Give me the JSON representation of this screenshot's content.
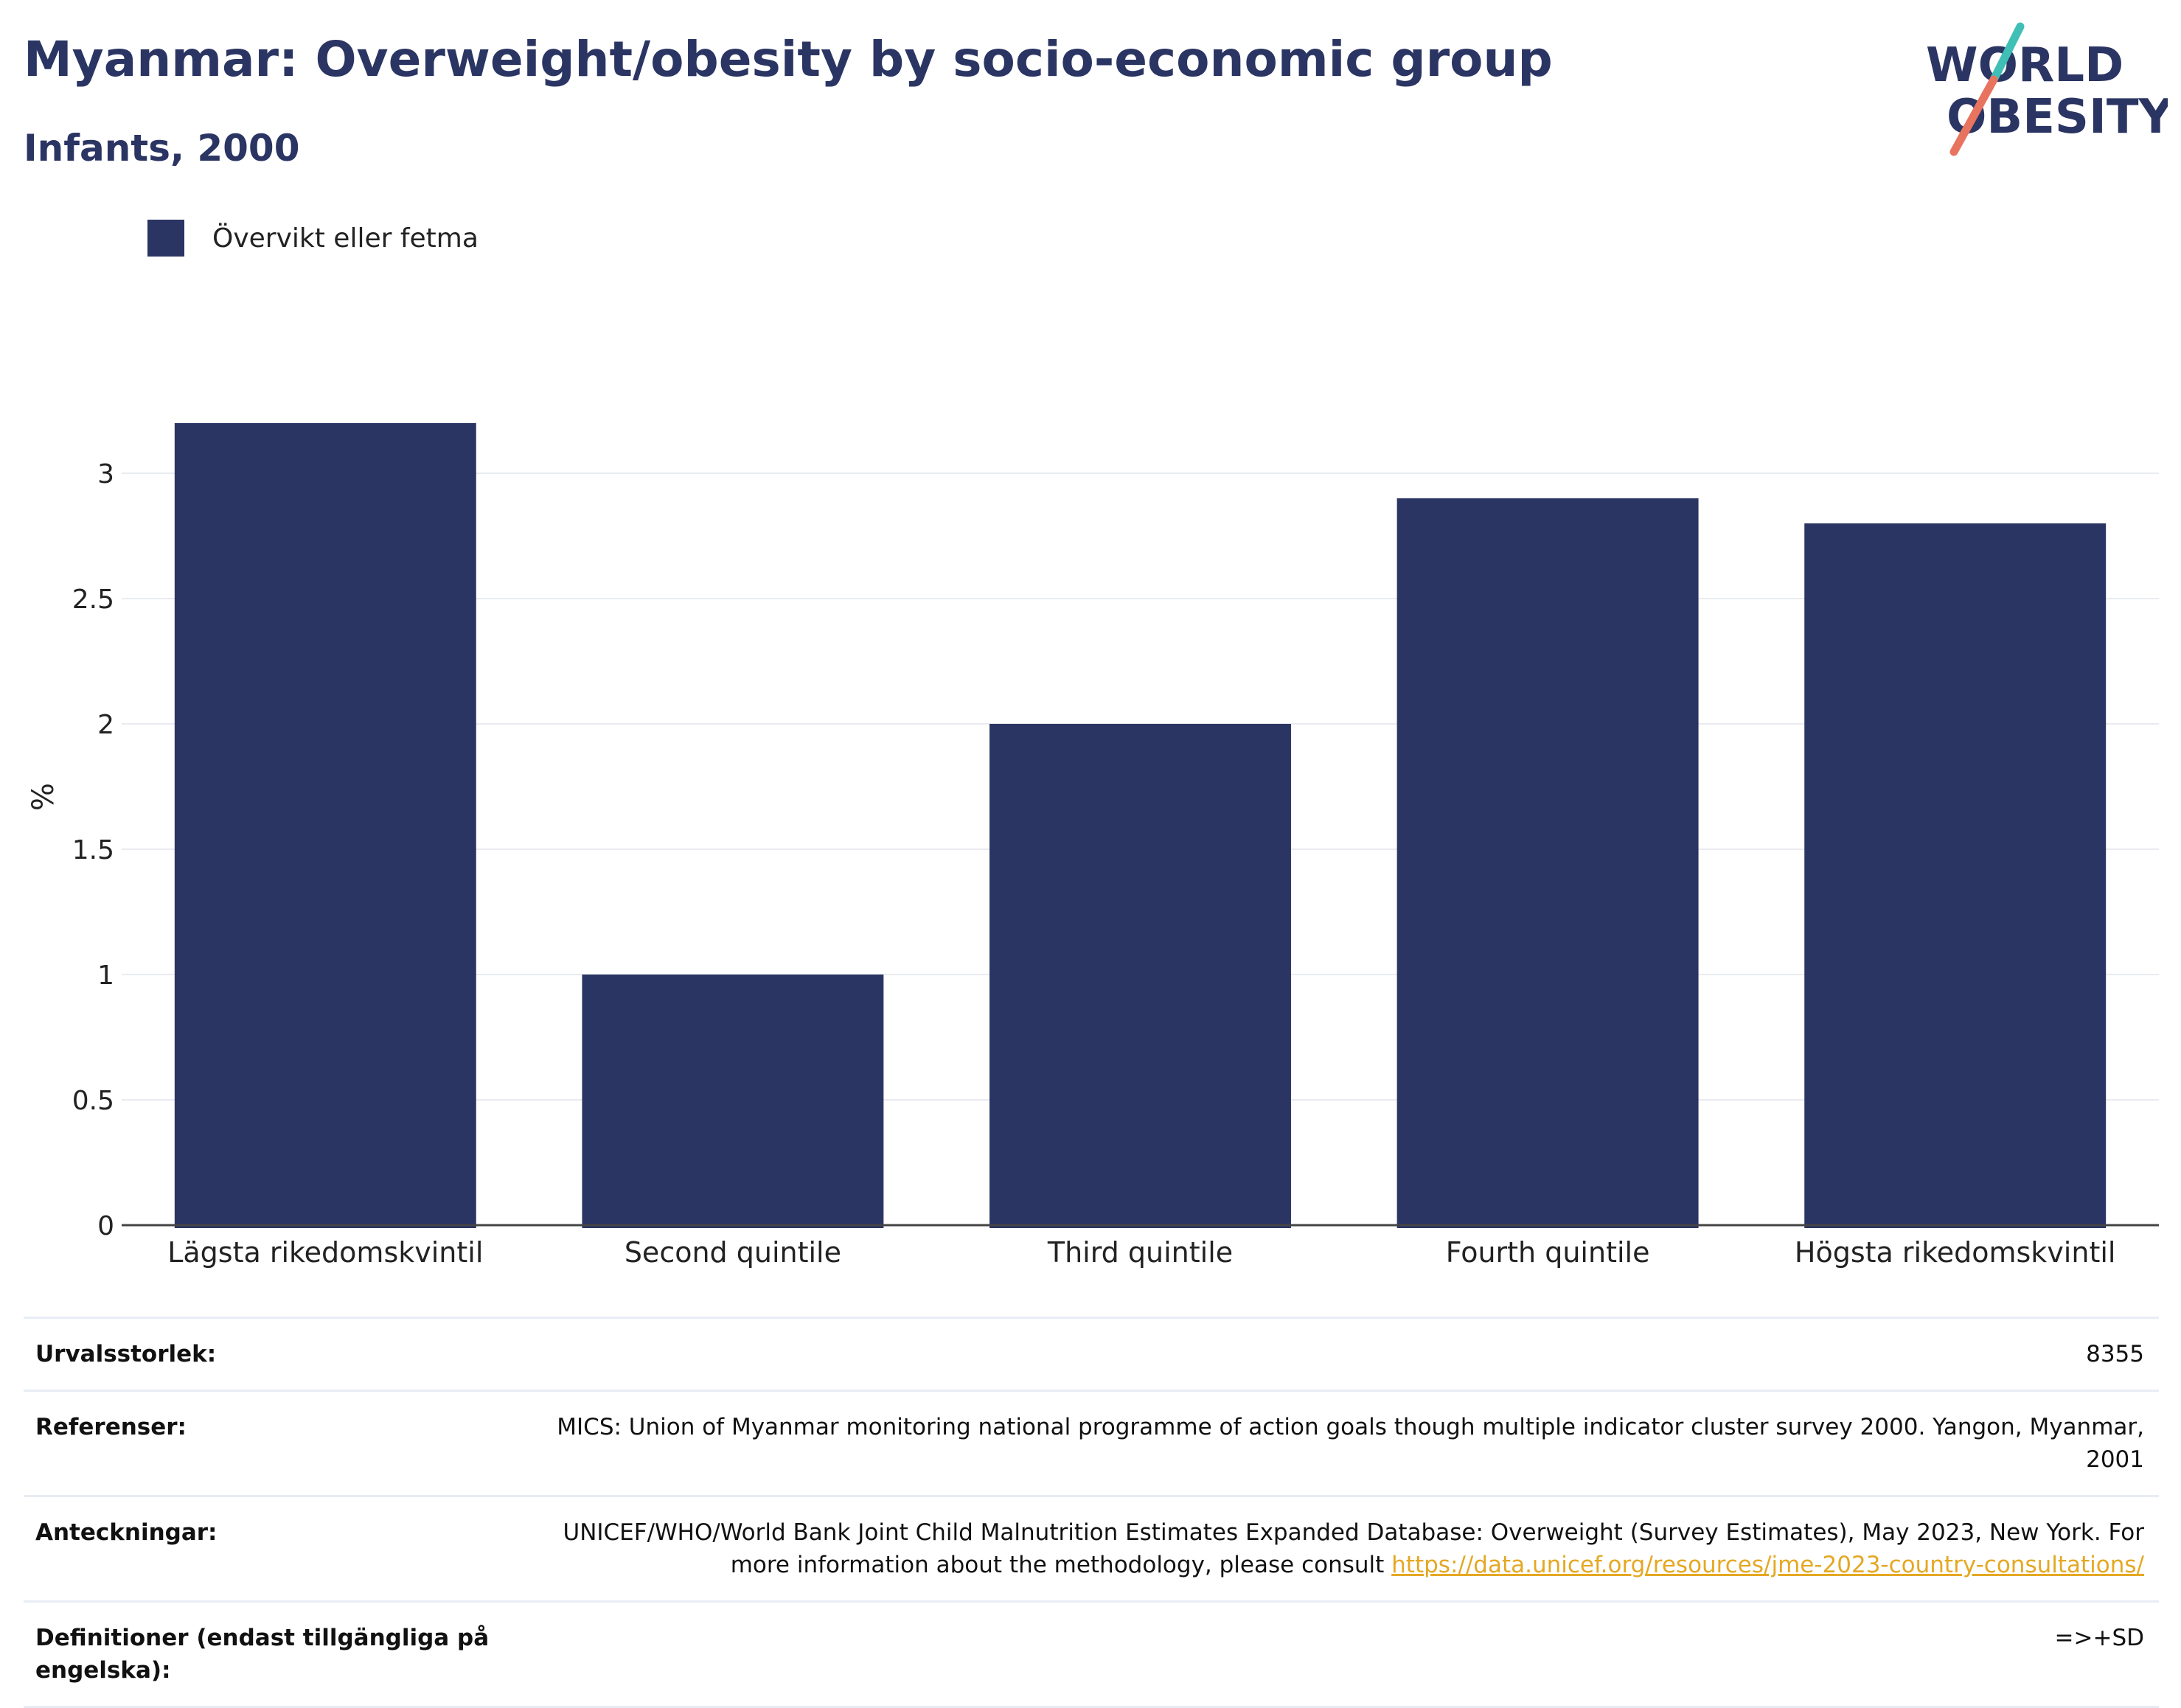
{
  "header": {
    "title": "Myanmar: Overweight/obesity by socio-economic group",
    "subtitle": "Infants, 2000"
  },
  "logo": {
    "line1": "WORLD",
    "line2": "OBESITY",
    "colors": {
      "text": "#2b3563",
      "teal": "#3fbfb6",
      "coral": "#e8735f"
    }
  },
  "legend": {
    "label": "Övervikt eller fetma"
  },
  "chart_data": {
    "type": "bar",
    "categories": [
      "Lägsta rikedomskvintil",
      "Second quintile",
      "Third quintile",
      "Fourth quintile",
      "Högsta rikedomskvintil"
    ],
    "series": [
      {
        "name": "Övervikt eller fetma",
        "values": [
          3.2,
          1.0,
          2.0,
          2.9,
          2.8
        ],
        "color": "#2b3563"
      }
    ],
    "title": "Myanmar: Overweight/obesity by socio-economic group",
    "subtitle": "Infants, 2000",
    "xlabel": "",
    "ylabel": "%",
    "ylim": [
      0,
      3.3
    ],
    "yticks": [
      0,
      0.5,
      1,
      1.5,
      2,
      2.5,
      3
    ],
    "ytick_labels": [
      "0",
      "0.5",
      "1",
      "1.5",
      "2",
      "2.5",
      "3"
    ],
    "grid": true,
    "legend_position": "top-left"
  },
  "info": {
    "rows": [
      {
        "key": "Urvalsstorlek:",
        "value": "8355"
      },
      {
        "key": "Referenser:",
        "value": "MICS: Union of Myanmar monitoring national programme of action goals though multiple indicator cluster survey 2000. Yangon, Myanmar, 2001"
      },
      {
        "key": "Anteckningar:",
        "value": "UNICEF/WHO/World Bank Joint Child Malnutrition Estimates Expanded Database: Overweight (Survey Estimates), May 2023, New York. For more information about the methodology, please consult ",
        "link": "https://data.unicef.org/resources/jme-2023-country-consultations/"
      },
      {
        "key": "Definitioner (endast tillgängliga på engelska):",
        "value": "=>+SD"
      }
    ]
  }
}
